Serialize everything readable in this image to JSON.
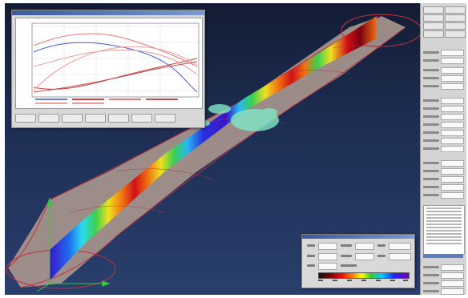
{
  "colors": {
    "viewport_top": "#131c33",
    "viewport_bottom": "#2a3f6d",
    "tube": "#a7958c",
    "tube_outline": "#c03040",
    "axes": "#2ecc40",
    "particles": "#7fe8c6"
  },
  "icons": {
    "viewport_axes": "xyz-axes-icon"
  },
  "plot": {
    "series_colors": [
      "#4a5ad8",
      "#d04040",
      "#e07a7a",
      "#f0a0a0",
      "#e89a9a",
      "#c05050"
    ],
    "toolbar_button_count": 7
  },
  "right_panel": {
    "row_count": 30
  },
  "colormap": {
    "tick_count": 7
  }
}
